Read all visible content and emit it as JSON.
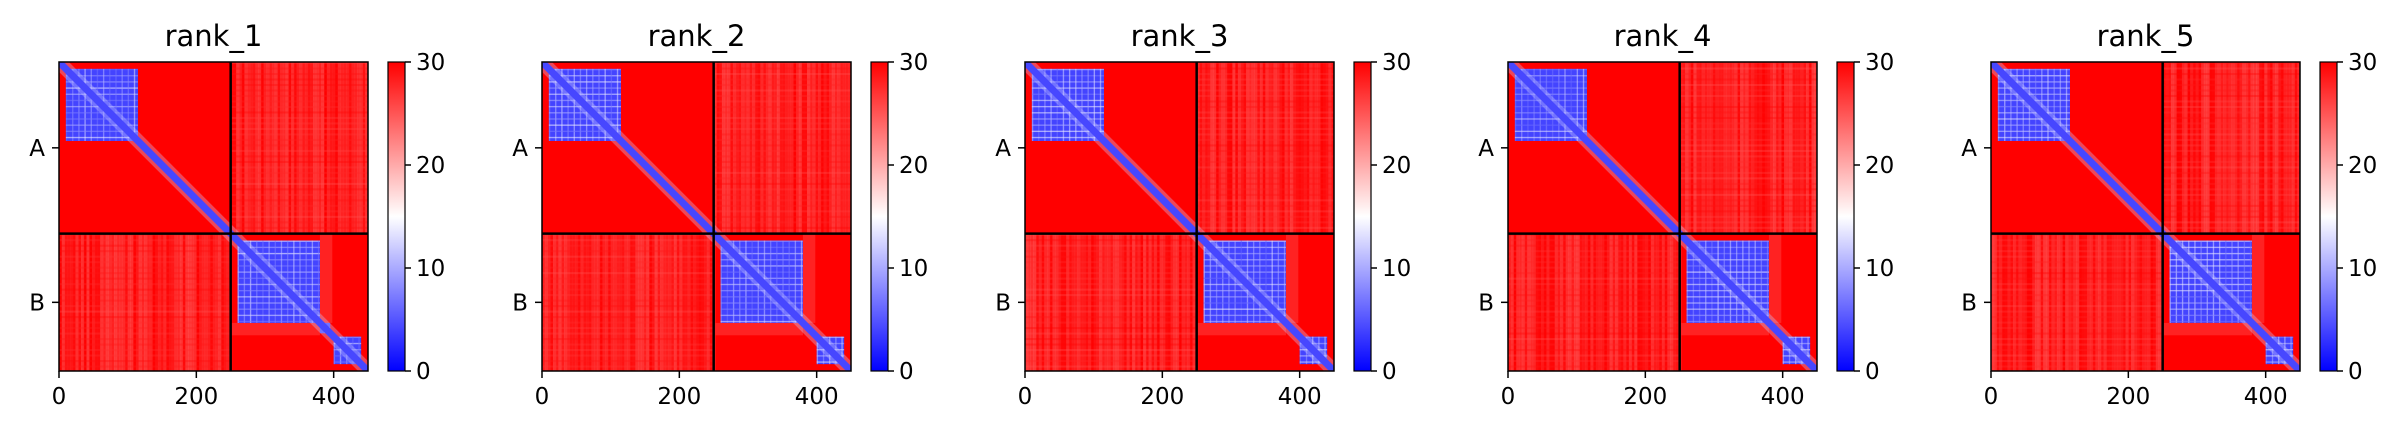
{
  "chart_data": [
    {
      "type": "heatmap",
      "title": "rank_1",
      "chains": [
        {
          "name": "A",
          "length": 250
        },
        {
          "name": "B",
          "length": 200
        }
      ],
      "xticks": [
        "0",
        "200",
        "400"
      ],
      "xtick_values": [
        0,
        200,
        400
      ],
      "xlim": [
        0,
        450
      ],
      "colorbar": {
        "range": [
          0,
          30
        ],
        "ticks": [
          "0",
          "10",
          "20",
          "30"
        ],
        "tick_values": [
          0,
          10,
          20,
          30
        ]
      },
      "cmap": [
        "#0000ff",
        "#ffffff",
        "#ff0000"
      ],
      "domains": [
        [
          10,
          115
        ],
        [
          260,
          395
        ],
        [
          400,
          440
        ]
      ],
      "chain_b_split": 380
    },
    {
      "type": "heatmap",
      "title": "rank_2",
      "chains": [
        {
          "name": "A",
          "length": 250
        },
        {
          "name": "B",
          "length": 200
        }
      ],
      "xticks": [
        "0",
        "200",
        "400"
      ],
      "xtick_values": [
        0,
        200,
        400
      ],
      "xlim": [
        0,
        450
      ],
      "colorbar": {
        "range": [
          0,
          30
        ],
        "ticks": [
          "0",
          "10",
          "20",
          "30"
        ],
        "tick_values": [
          0,
          10,
          20,
          30
        ]
      },
      "cmap": [
        "#0000ff",
        "#ffffff",
        "#ff0000"
      ],
      "domains": [
        [
          10,
          115
        ],
        [
          260,
          385
        ],
        [
          400,
          440
        ]
      ],
      "chain_b_split": 380
    },
    {
      "type": "heatmap",
      "title": "rank_3",
      "chains": [
        {
          "name": "A",
          "length": 250
        },
        {
          "name": "B",
          "length": 200
        }
      ],
      "xticks": [
        "0",
        "200",
        "400"
      ],
      "xtick_values": [
        0,
        200,
        400
      ],
      "xlim": [
        0,
        450
      ],
      "colorbar": {
        "range": [
          0,
          30
        ],
        "ticks": [
          "0",
          "10",
          "20",
          "30"
        ],
        "tick_values": [
          0,
          10,
          20,
          30
        ]
      },
      "cmap": [
        "#0000ff",
        "#ffffff",
        "#ff0000"
      ],
      "domains": [
        [
          10,
          115
        ],
        [
          260,
          385
        ],
        [
          400,
          440
        ]
      ],
      "chain_b_split": 380
    },
    {
      "type": "heatmap",
      "title": "rank_4",
      "chains": [
        {
          "name": "A",
          "length": 250
        },
        {
          "name": "B",
          "length": 200
        }
      ],
      "xticks": [
        "0",
        "200",
        "400"
      ],
      "xtick_values": [
        0,
        200,
        400
      ],
      "xlim": [
        0,
        450
      ],
      "colorbar": {
        "range": [
          0,
          30
        ],
        "ticks": [
          "0",
          "10",
          "20",
          "30"
        ],
        "tick_values": [
          0,
          10,
          20,
          30
        ]
      },
      "cmap": [
        "#0000ff",
        "#ffffff",
        "#ff0000"
      ],
      "domains": [
        [
          10,
          115
        ],
        [
          260,
          385
        ],
        [
          400,
          440
        ]
      ],
      "chain_b_split": 380
    },
    {
      "type": "heatmap",
      "title": "rank_5",
      "chains": [
        {
          "name": "A",
          "length": 250
        },
        {
          "name": "B",
          "length": 200
        }
      ],
      "xticks": [
        "0",
        "200",
        "400"
      ],
      "xtick_values": [
        0,
        200,
        400
      ],
      "xlim": [
        0,
        450
      ],
      "colorbar": {
        "range": [
          0,
          30
        ],
        "ticks": [
          "0",
          "10",
          "20",
          "30"
        ],
        "tick_values": [
          0,
          10,
          20,
          30
        ]
      },
      "cmap": [
        "#0000ff",
        "#ffffff",
        "#ff0000"
      ],
      "domains": [
        [
          10,
          115
        ],
        [
          260,
          380
        ],
        [
          400,
          440
        ]
      ],
      "chain_b_split": 380
    }
  ]
}
